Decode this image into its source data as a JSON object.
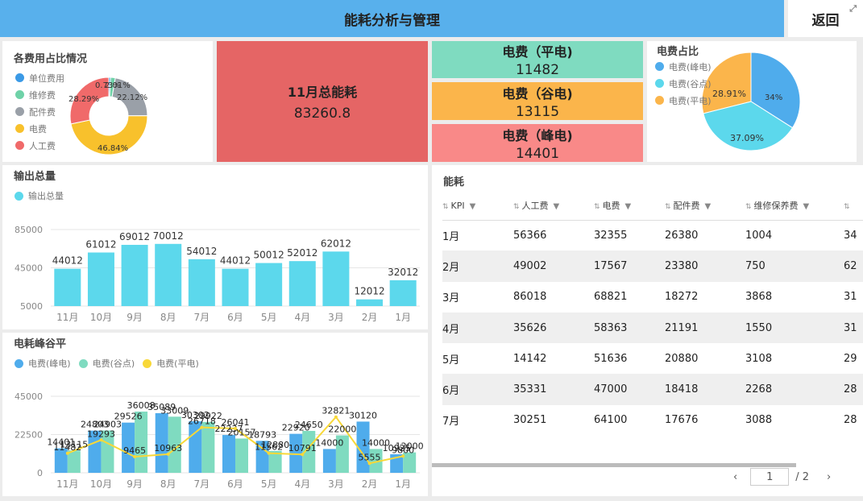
{
  "header": {
    "title": "能耗分析与管理",
    "back_label": "返回"
  },
  "cost_ratio": {
    "title": "各费用占比情况",
    "legend": [
      {
        "label": "单位费用",
        "color": "#3b9ae6"
      },
      {
        "label": "维修费",
        "color": "#6fd2a8"
      },
      {
        "label": "配件费",
        "color": "#9aa0a8"
      },
      {
        "label": "电费",
        "color": "#f8c12c"
      },
      {
        "label": "人工费",
        "color": "#f06a6a"
      }
    ],
    "labels": {
      "a": "0.73%",
      "b": "2.01%",
      "c": "22.12%",
      "d": "46.84%",
      "e": "28.29%"
    }
  },
  "total": {
    "label": "11月总能耗",
    "value": "83260.8"
  },
  "kpis": [
    {
      "label": "电费（平电)",
      "value": "11482",
      "color": "#7fdbc0"
    },
    {
      "label": "电费（谷电)",
      "value": "13115",
      "color": "#fbb54b"
    },
    {
      "label": "电费（峰电)",
      "value": "14401",
      "color": "#f98988"
    }
  ],
  "elec_ratio": {
    "title": "电费占比",
    "legend": [
      {
        "label": "电费(峰电)",
        "color": "#4facec"
      },
      {
        "label": "电费(谷点)",
        "color": "#5cd8ec"
      },
      {
        "label": "电费(平电)",
        "color": "#fbb54b"
      }
    ],
    "labels": {
      "peak": "34%",
      "valley": "37.09%",
      "flat": "28.91%"
    }
  },
  "output": {
    "title": "输出总量",
    "legend": "输出总量",
    "color": "#5cd8ec"
  },
  "peak_valley": {
    "title": "电耗峰谷平",
    "legend": [
      {
        "label": "电费(峰电)",
        "color": "#4facec"
      },
      {
        "label": "电费(谷点)",
        "color": "#7fdbc0"
      },
      {
        "label": "电费(平电)",
        "color": "#f8d838"
      }
    ]
  },
  "chart_data": [
    {
      "type": "pie",
      "title": "各费用占比情况",
      "categories": [
        "单位费用",
        "维修费",
        "配件费",
        "电费",
        "人工费"
      ],
      "values": [
        0.73,
        2.01,
        22.12,
        46.84,
        28.29
      ]
    },
    {
      "type": "pie",
      "title": "电费占比",
      "categories": [
        "电费(峰电)",
        "电费(谷点)",
        "电费(平电)"
      ],
      "values": [
        34,
        37.09,
        28.91
      ]
    },
    {
      "type": "bar",
      "title": "输出总量",
      "categories": [
        "11月",
        "10月",
        "9月",
        "8月",
        "7月",
        "6月",
        "5月",
        "4月",
        "3月",
        "2月",
        "1月"
      ],
      "series": [
        {
          "name": "输出总量",
          "values": [
            44012,
            61012,
            69012,
            70012,
            54012,
            44012,
            50012,
            52012,
            62012,
            12012,
            32012
          ]
        }
      ],
      "yticks": [
        "85000",
        "45000",
        "5000"
      ],
      "ylim": [
        5000,
        85000
      ]
    },
    {
      "type": "bar",
      "title": "电耗峰谷平",
      "categories": [
        "11月",
        "10月",
        "9月",
        "8月",
        "7月",
        "6月",
        "5月",
        "4月",
        "3月",
        "2月",
        "1月"
      ],
      "series": [
        {
          "name": "电费(峰电)",
          "values": [
            14401,
            24803,
            29526,
            35089,
            30302,
            22237,
            18793,
            22920,
            14000,
            30120,
            10925
          ]
        },
        {
          "name": "电费(谷点)",
          "values": [
            13115,
            24903,
            36008,
            33009,
            29922,
            20157,
            12880,
            24650,
            22000,
            14000,
            12000
          ]
        },
        {
          "name": "电费(平电)",
          "values": [
            11482,
            19293,
            9465,
            10963,
            26718,
            26041,
            11562,
            10791,
            32821,
            5555,
            9800
          ]
        }
      ],
      "yticks": [
        "45000",
        "22500",
        "0"
      ],
      "ylim": [
        0,
        45000
      ]
    }
  ],
  "table": {
    "title": "能耗",
    "columns": [
      "KPI",
      "人工费",
      "电费",
      "配件费",
      "维修保养费",
      ""
    ],
    "rows": [
      [
        "1月",
        "56366",
        "32355",
        "26380",
        "1004",
        "34"
      ],
      [
        "2月",
        "49002",
        "17567",
        "23380",
        "750",
        "62"
      ],
      [
        "3月",
        "86018",
        "68821",
        "18272",
        "3868",
        "31"
      ],
      [
        "4月",
        "35626",
        "58363",
        "21191",
        "1550",
        "31"
      ],
      [
        "5月",
        "14142",
        "51636",
        "20880",
        "3108",
        "29"
      ],
      [
        "6月",
        "35331",
        "47000",
        "18418",
        "2268",
        "28"
      ],
      [
        "7月",
        "30251",
        "64100",
        "17676",
        "3088",
        "28"
      ]
    ],
    "page": "1",
    "pages": "/ 2"
  }
}
